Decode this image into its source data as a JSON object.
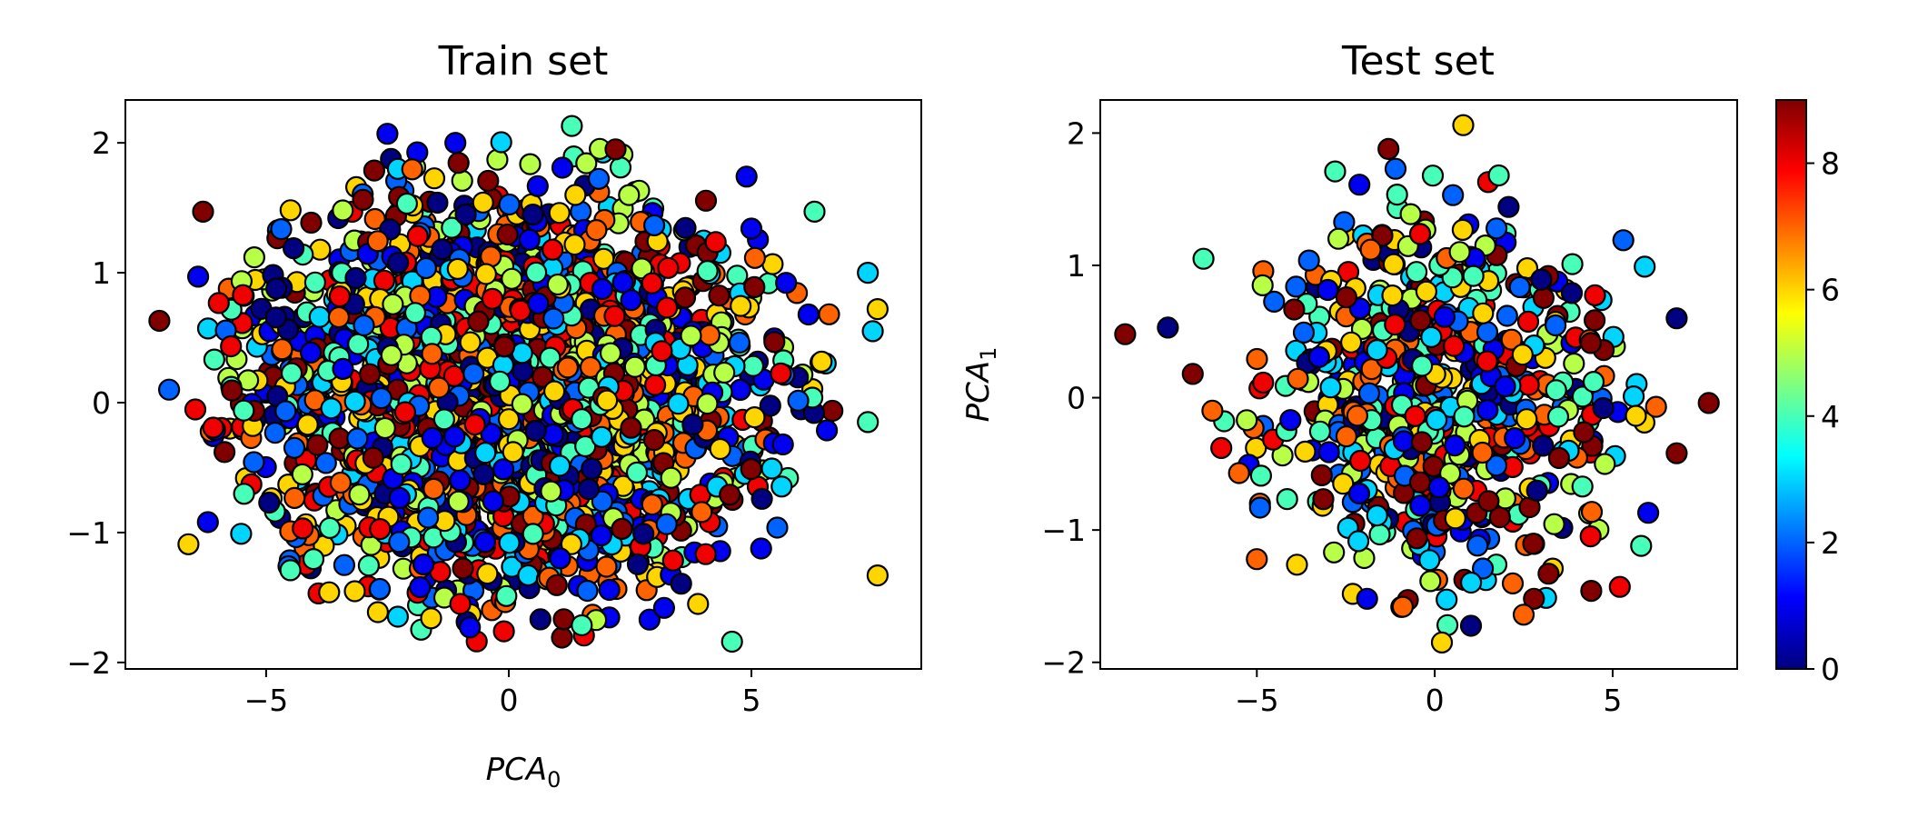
{
  "chart_data": [
    {
      "type": "scatter",
      "title": "Train set",
      "xlabel": "PCA",
      "xlabel_subscript": "0",
      "ylabel": "",
      "ylabel_subscript": "",
      "xlim": [
        -7.9,
        8.5
      ],
      "ylim": [
        -2.05,
        2.33
      ],
      "xticks": [
        -5,
        0,
        5
      ],
      "yticks": [
        -2,
        -1,
        0,
        1,
        2
      ],
      "xtick_labels": [
        "−5",
        "0",
        "5"
      ],
      "ytick_labels": [
        "−2",
        "−1",
        "0",
        "1",
        "2"
      ],
      "grid": false,
      "marker_edge_color": "#000000",
      "colormap": "jet",
      "color_range": [
        0,
        9
      ],
      "cloud": {
        "count": 2400,
        "x_center": 0.0,
        "y_center": 0.1,
        "x_spread": 6.8,
        "y_spread": 1.95
      },
      "points": [
        {
          "x": -7.2,
          "y": 0.63,
          "c": 9
        },
        {
          "x": -7.0,
          "y": 0.1,
          "c": 2
        },
        {
          "x": -6.3,
          "y": 1.47,
          "c": 9
        },
        {
          "x": -6.6,
          "y": -1.09,
          "c": 6
        },
        {
          "x": -6.2,
          "y": -0.92,
          "c": 1
        },
        {
          "x": -2.5,
          "y": 2.07,
          "c": 1
        },
        {
          "x": -1.1,
          "y": 2.0,
          "c": 1
        },
        {
          "x": 1.3,
          "y": 2.13,
          "c": 4
        },
        {
          "x": 2.2,
          "y": 1.95,
          "c": 9
        },
        {
          "x": 4.9,
          "y": 1.74,
          "c": 1
        },
        {
          "x": 6.3,
          "y": 1.47,
          "c": 4
        },
        {
          "x": 7.4,
          "y": 1.0,
          "c": 3
        },
        {
          "x": 7.6,
          "y": 0.72,
          "c": 6
        },
        {
          "x": 7.5,
          "y": 0.55,
          "c": 3
        },
        {
          "x": 7.6,
          "y": -1.33,
          "c": 6
        },
        {
          "x": 4.6,
          "y": -1.84,
          "c": 4
        },
        {
          "x": -0.1,
          "y": -1.76,
          "c": 8
        },
        {
          "x": -0.8,
          "y": -1.73,
          "c": 1
        },
        {
          "x": -1.6,
          "y": -1.66,
          "c": 6
        },
        {
          "x": 2.9,
          "y": -1.67,
          "c": 1
        },
        {
          "x": -4.5,
          "y": -1.29,
          "c": 4
        },
        {
          "x": -3.7,
          "y": -1.46,
          "c": 6
        },
        {
          "x": -1.0,
          "y": -1.55,
          "c": 8
        },
        {
          "x": 3.2,
          "y": -1.58,
          "c": 1
        },
        {
          "x": 3.9,
          "y": -1.55,
          "c": 6
        },
        {
          "x": 5.0,
          "y": 1.34,
          "c": 1
        },
        {
          "x": -6.4,
          "y": 0.97,
          "c": 1
        },
        {
          "x": 6.6,
          "y": 0.68,
          "c": 7
        },
        {
          "x": 7.4,
          "y": -0.15,
          "c": 4
        }
      ]
    },
    {
      "type": "scatter",
      "title": "Test set",
      "xlabel": "",
      "xlabel_subscript": "",
      "ylabel": "PCA",
      "ylabel_subscript": "1",
      "xlim": [
        -9.4,
        8.5
      ],
      "ylim": [
        -2.05,
        2.25
      ],
      "xticks": [
        -5,
        0,
        5
      ],
      "yticks": [
        -2,
        -1,
        0,
        1,
        2
      ],
      "xtick_labels": [
        "−5",
        "0",
        "5"
      ],
      "ytick_labels": [
        "−2",
        "−1",
        "0",
        "1",
        "2"
      ],
      "grid": false,
      "marker_edge_color": "#000000",
      "colormap": "jet",
      "color_range": [
        0,
        9
      ],
      "cloud": {
        "count": 650,
        "x_center": 0.0,
        "y_center": 0.0,
        "x_spread": 6.3,
        "y_spread": 1.75
      },
      "points": [
        {
          "x": -8.7,
          "y": 0.48,
          "c": 9
        },
        {
          "x": -7.5,
          "y": 0.53,
          "c": 0
        },
        {
          "x": -6.8,
          "y": 0.18,
          "c": 9
        },
        {
          "x": -6.5,
          "y": 1.05,
          "c": 4
        },
        {
          "x": 0.8,
          "y": 2.06,
          "c": 6
        },
        {
          "x": -1.3,
          "y": 1.88,
          "c": 9
        },
        {
          "x": -2.8,
          "y": 1.71,
          "c": 4
        },
        {
          "x": 1.5,
          "y": 1.63,
          "c": 8
        },
        {
          "x": 1.8,
          "y": 1.68,
          "c": 4
        },
        {
          "x": 5.9,
          "y": 0.99,
          "c": 3
        },
        {
          "x": 6.8,
          "y": 0.6,
          "c": 0
        },
        {
          "x": 7.7,
          "y": -0.04,
          "c": 9
        },
        {
          "x": 6.8,
          "y": -0.42,
          "c": 9
        },
        {
          "x": 5.8,
          "y": -1.12,
          "c": 4
        },
        {
          "x": 5.2,
          "y": -1.43,
          "c": 8
        },
        {
          "x": 4.4,
          "y": -1.46,
          "c": 9
        },
        {
          "x": 2.5,
          "y": -1.64,
          "c": 7
        },
        {
          "x": 0.2,
          "y": -1.85,
          "c": 6
        },
        {
          "x": -0.9,
          "y": -1.58,
          "c": 7
        },
        {
          "x": -1.9,
          "y": -1.52,
          "c": 1
        },
        {
          "x": -5.0,
          "y": -1.22,
          "c": 7
        },
        {
          "x": -5.5,
          "y": -0.57,
          "c": 7
        },
        {
          "x": -6.0,
          "y": -0.38,
          "c": 8
        },
        {
          "x": 3.2,
          "y": -1.33,
          "c": 9
        },
        {
          "x": 5.3,
          "y": 1.19,
          "c": 2
        },
        {
          "x": -1.1,
          "y": 1.73,
          "c": 2
        },
        {
          "x": 6.0,
          "y": -0.87,
          "c": 1
        }
      ]
    }
  ],
  "colorbar": {
    "ticks": [
      0,
      2,
      4,
      6,
      8
    ],
    "tick_labels": [
      "0",
      "2",
      "4",
      "6",
      "8"
    ],
    "range": [
      0,
      9
    ]
  }
}
